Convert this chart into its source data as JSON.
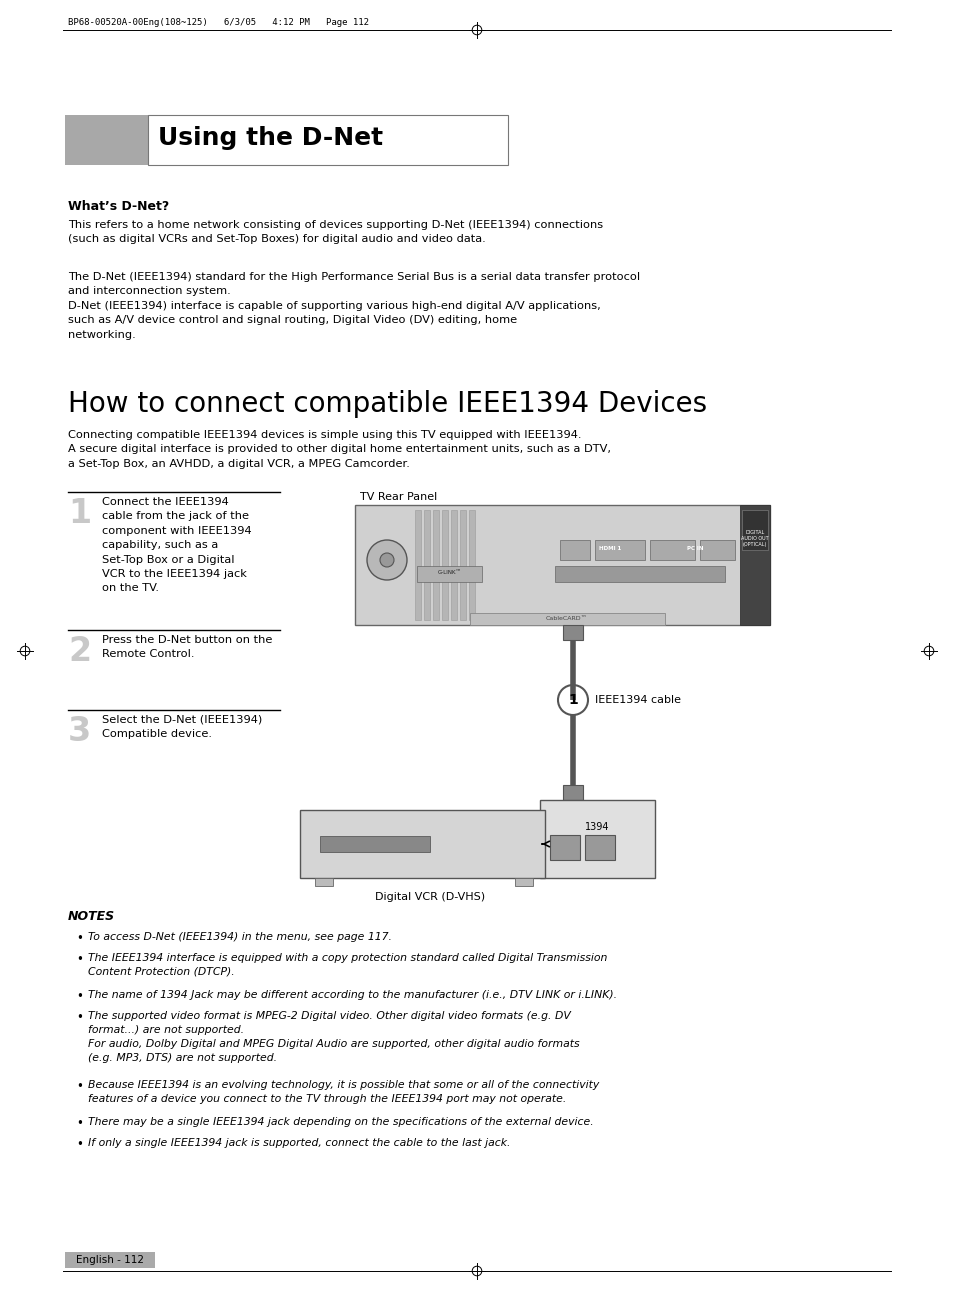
{
  "page_header": "BP68-00520A-00Eng(108~125)   6/3/05   4:12 PM   Page 112",
  "section_title": "Using the D-Net",
  "whats_dnet_title": "What’s D-Net?",
  "whats_dnet_para1": "This refers to a home network consisting of devices supporting D-Net (IEEE1394) connections\n(such as digital VCRs and Set-Top Boxes) for digital audio and video data.",
  "whats_dnet_para2": "The D-Net (IEEE1394) standard for the High Performance Serial Bus is a serial data transfer protocol\nand interconnection system.\nD-Net (IEEE1394) interface is capable of supporting various high-end digital A/V applications,\nsuch as A/V device control and signal routing, Digital Video (DV) editing, home\nnetworking.",
  "section2_title": "How to connect compatible IEEE1394 Devices",
  "section2_intro": "Connecting compatible IEEE1394 devices is simple using this TV equipped with IEEE1394.\nA secure digital interface is provided to other digital home entertainment units, such as a DTV,\na Set-Top Box, an AVHDD, a digital VCR, a MPEG Camcorder.",
  "step1_num": "1",
  "step1_text": "Connect the IEEE1394\ncable from the jack of the\ncomponent with IEEE1394\ncapability, such as a\nSet-Top Box or a Digital\nVCR to the IEEE1394 jack\non the TV.",
  "step2_num": "2",
  "step2_text": "Press the D-Net button on the\nRemote Control.",
  "step3_num": "3",
  "step3_text": "Select the D-Net (IEEE1394)\nCompatible device.",
  "tv_rear_panel_label": "TV Rear Panel",
  "ieee1394_cable_label": "IEEE1394 cable",
  "digital_vcr_label": "Digital VCR (D-VHS)",
  "notes_title": "NOTES",
  "notes": [
    "To access D-Net (IEEE1394) in the menu, see page 117.",
    "The IEEE1394 interface is equipped with a copy protection standard called Digital Transmission\nContent Protection (DTCP).",
    "The name of 1394 Jack may be different according to the manufacturer (i.e., DTV LINK or i.LINK).",
    "The supported video format is MPEG-2 Digital video. Other digital video formats (e.g. DV\nformat...) are not supported.\nFor audio, Dolby Digital and MPEG Digital Audio are supported, other digital audio formats\n(e.g. MP3, DTS) are not supported.",
    "Because IEEE1394 is an evolving technology, it is possible that some or all of the connectivity\nfeatures of a device you connect to the TV through the IEEE1394 port may not operate.",
    "There may be a single IEEE1394 jack depending on the specifications of the external device.",
    "If only a single IEEE1394 jack is supported, connect the cable to the last jack."
  ],
  "footer_text": "English - 112",
  "bg_color": "#ffffff",
  "title_gray": "#a0a0a0",
  "panel_gray": "#c8c8c8",
  "dark_gray": "#555555",
  "footer_gray": "#aaaaaa"
}
